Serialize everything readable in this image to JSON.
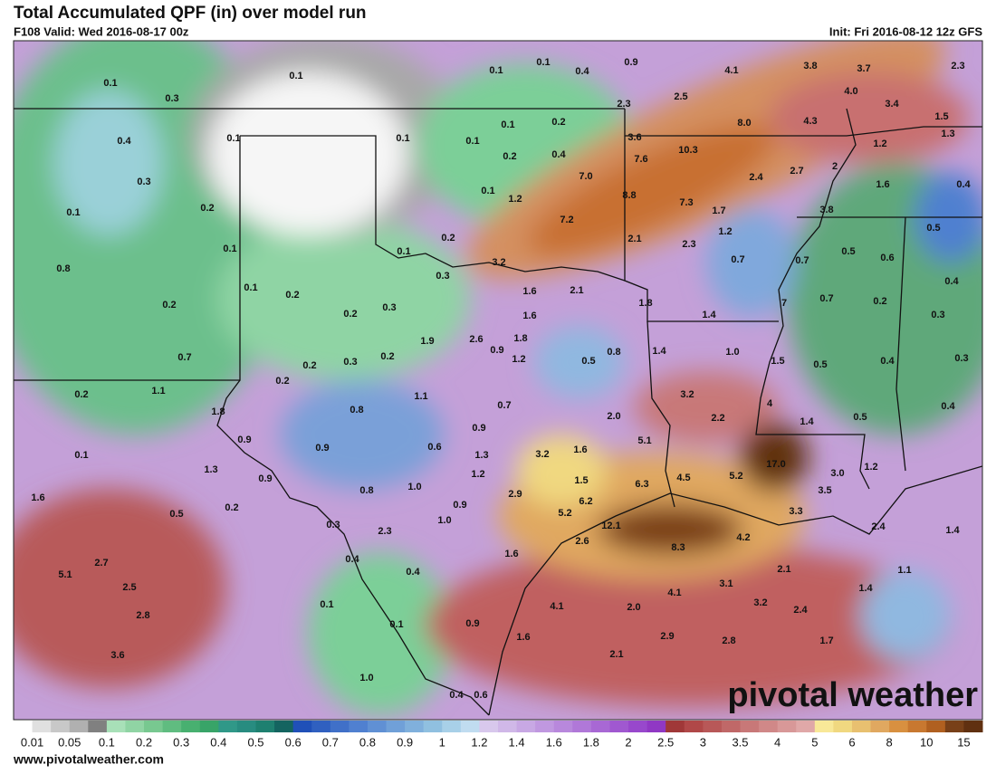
{
  "header": {
    "title": "Total Accumulated QPF (in) over model run",
    "valid": "F108 Valid: Wed 2016-08-17 00z",
    "init": "Init: Fri 2016-08-12 12z GFS"
  },
  "map_labels": [
    "0.1",
    "0.1",
    "0.1",
    "0.4",
    "0.9",
    "4.1",
    "3.8",
    "3.7",
    "2.3",
    "0.1",
    "0.3",
    "2.3",
    "2.5",
    "4.0",
    "3.4",
    "1.5",
    "0.4",
    "0.1",
    "0.1",
    "0.1",
    "0.1",
    "0.2",
    "8.0",
    "4.3",
    "1.3",
    "3.6",
    "0.2",
    "0.4",
    "7.6",
    "10.3",
    "1.2",
    "2",
    "0.3",
    "7.0",
    "2.4",
    "2.7",
    "1.6",
    "0.4",
    "0.1",
    "0.2",
    "0.1",
    "1.2",
    "8.8",
    "7.3",
    "1.7",
    "3.8",
    "7.2",
    "0.2",
    "2.1",
    "2.3",
    "1.2",
    "0.5",
    "0.1",
    "0.1",
    "3.2",
    "0.7",
    "0.7",
    "0.5",
    "0.6",
    "0.8",
    "0.3",
    "0.1",
    "0.2",
    "1.6",
    "2.1",
    "1.8",
    "7",
    "0.7",
    "0.2",
    "0.4",
    "0.2",
    "0.2",
    "0.3",
    "1.6",
    "1.4",
    "0.3",
    "1.9",
    "2.6",
    "1.8",
    "0.9",
    "1.2",
    "0.8",
    "1.4",
    "1.0",
    "0.7",
    "0.2",
    "0.3",
    "0.2",
    "0.5",
    "1.5",
    "0.5",
    "0.4",
    "0.3",
    "0.2",
    "0.2",
    "1.1",
    "1.1",
    "3.2",
    "4",
    "0.7",
    "0.8",
    "1.8",
    "2.0",
    "2.2",
    "1.4",
    "0.5",
    "0.4",
    "0.9",
    "5.1",
    "0.9",
    "0.9",
    "0.6",
    "1.3",
    "3.2",
    "1.6",
    "0.1",
    "1.3",
    "1.2",
    "17.0",
    "0.9",
    "1.0",
    "1.5",
    "4.5",
    "5.2",
    "3.0",
    "1.2",
    "6.3",
    "3.5",
    "1.6",
    "0.8",
    "2.9",
    "0.2",
    "0.9",
    "6.2",
    "0.5",
    "5.2",
    "3.3",
    "1.0",
    "12.1",
    "0.3",
    "2.3",
    "2.4",
    "1.4",
    "2.6",
    "4.2",
    "8.3",
    "1.6",
    "0.4",
    "2.7",
    "0.4",
    "2.1",
    "1.1",
    "5.1",
    "2.5",
    "3.1",
    "1.4",
    "4.1",
    "3.2",
    "0.1",
    "4.1",
    "2.0",
    "2.4",
    "2.8",
    "0.1",
    "0.9",
    "1.6",
    "2.9",
    "2.8",
    "1.7",
    "3.6",
    "2.1",
    "1.0",
    "0.4",
    "0.6"
  ],
  "colorbar": {
    "labels": [
      0.01,
      0.05,
      0.1,
      0.2,
      0.3,
      0.4,
      0.5,
      0.6,
      0.7,
      0.8,
      0.9,
      1,
      1.2,
      1.4,
      1.6,
      1.8,
      2,
      2.5,
      3,
      3.5,
      4,
      5,
      6,
      8,
      10,
      15
    ],
    "colors": [
      "#ffffff",
      "#e0e0e0",
      "#c8c8c8",
      "#b0b0b0",
      "#808080",
      "#a8e0b8",
      "#90d4a4",
      "#78c890",
      "#60bc80",
      "#48b070",
      "#38a468",
      "#309888",
      "#288c80",
      "#1e8070",
      "#146460",
      "#2050b8",
      "#3060c0",
      "#4070c8",
      "#5080d0",
      "#6090d4",
      "#70a0d8",
      "#80b0dc",
      "#90c0e0",
      "#a8d0e8",
      "#c0dcf0",
      "#d8c8ec",
      "#d0b8e8",
      "#c8a8e4",
      "#c098e0",
      "#b888dc",
      "#b078d8",
      "#a868d4",
      "#a058d0",
      "#9848cc",
      "#9038c4",
      "#a03838",
      "#b04848",
      "#b85858",
      "#c06868",
      "#c87878",
      "#d08888",
      "#d89898",
      "#e0a8a8",
      "#f8e898",
      "#f0d880",
      "#e8c070",
      "#e0a860",
      "#d89040",
      "#c87830",
      "#b06020",
      "#784018",
      "#603010"
    ]
  },
  "footer": {
    "website": "www.pivotalweather.com",
    "logo": "pivotal weather"
  }
}
